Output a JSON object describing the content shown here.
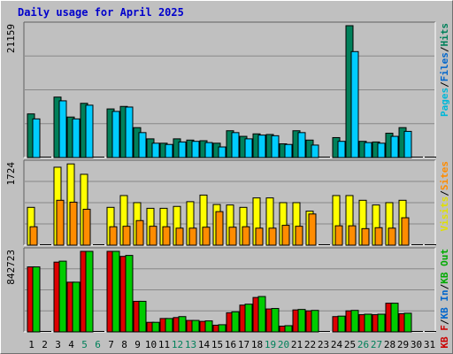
{
  "chart_data": {
    "type": "bar",
    "title": "Daily usage for April 2025",
    "title_color": "#0000cc",
    "x": [
      "1",
      "2",
      "3",
      "4",
      "5",
      "6",
      "7",
      "8",
      "9",
      "10",
      "11",
      "12",
      "13",
      "14",
      "15",
      "16",
      "17",
      "18",
      "19",
      "20",
      "21",
      "22",
      "23",
      "24",
      "25",
      "26",
      "27",
      "28",
      "29",
      "30",
      "31"
    ],
    "weekend_days": [
      "5",
      "6",
      "12",
      "13",
      "19",
      "20",
      "26",
      "27"
    ],
    "weekday_label_color": "#000000",
    "weekend_label_color": "#00805a",
    "panels": [
      {
        "id": "hits",
        "max_label": "21159",
        "ylim": [
          0,
          21159
        ],
        "legend": [
          {
            "text": "Pages",
            "color": "#00b8d8"
          },
          {
            "text": "/",
            "color": "#000000"
          },
          {
            "text": "Files",
            "color": "#0066cc"
          },
          {
            "text": "/",
            "color": "#000000"
          },
          {
            "text": "Hits",
            "color": "#00805a"
          }
        ],
        "series": [
          {
            "name": "Hits",
            "color": "#00805a",
            "values": [
              7000,
              0,
              9700,
              6500,
              8700,
              0,
              7800,
              8200,
              4800,
              3000,
              2300,
              3000,
              2800,
              2700,
              2300,
              4300,
              3400,
              3800,
              3700,
              2200,
              4300,
              2800,
              0,
              3200,
              21159,
              2600,
              2500,
              3900,
              4800,
              0,
              0
            ]
          },
          {
            "name": "Files",
            "color": "#0066cc",
            "values": [
              0,
              0,
              0,
              0,
              0,
              0,
              0,
              0,
              0,
              0,
              0,
              0,
              0,
              0,
              0,
              0,
              0,
              0,
              0,
              0,
              0,
              0,
              0,
              0,
              0,
              0,
              0,
              0,
              0,
              0,
              0
            ]
          },
          {
            "name": "Pages",
            "color": "#00ccff",
            "values": [
              6200,
              0,
              9100,
              6200,
              8400,
              0,
              7400,
              8100,
              4000,
              2300,
              2100,
              2500,
              2600,
              2400,
              1700,
              4000,
              3000,
              3600,
              3500,
              2100,
              4000,
              2000,
              0,
              2600,
              17000,
              2400,
              2300,
              3400,
              4200,
              0,
              0
            ]
          }
        ]
      },
      {
        "id": "visits",
        "max_label": "1724",
        "ylim": [
          0,
          1724
        ],
        "legend": [
          {
            "text": "Visits",
            "color": "#e0e000"
          },
          {
            "text": "/",
            "color": "#000000"
          },
          {
            "text": "Sites",
            "color": "#ff8c00"
          }
        ],
        "series": [
          {
            "name": "Visits",
            "color": "#ffff00",
            "values": [
              800,
              0,
              1650,
              1720,
              1500,
              0,
              800,
              1050,
              900,
              780,
              780,
              820,
              920,
              1060,
              860,
              850,
              800,
              1000,
              1000,
              900,
              900,
              720,
              0,
              1050,
              1050,
              950,
              850,
              900,
              950,
              0,
              0
            ]
          },
          {
            "name": "Sites",
            "color": "#ff8c00",
            "values": [
              390,
              0,
              950,
              910,
              760,
              0,
              390,
              400,
              520,
              400,
              390,
              360,
              360,
              380,
              710,
              380,
              390,
              360,
              360,
              420,
              400,
              660,
              0,
              410,
              410,
              350,
              370,
              360,
              580,
              0,
              0
            ]
          }
        ]
      },
      {
        "id": "kbytes",
        "max_label": "842723",
        "ylim": [
          0,
          842723
        ],
        "legend": [
          {
            "text": "KB F",
            "color": "#cc0000"
          },
          {
            "text": "/",
            "color": "#000000"
          },
          {
            "text": "KB In",
            "color": "#0066cc"
          },
          {
            "text": "/",
            "color": "#000000"
          },
          {
            "text": "KB Out",
            "color": "#00aa00"
          }
        ],
        "series": [
          {
            "name": "KB F",
            "color": "#dd0000",
            "values": [
              680000,
              0,
              730000,
              520000,
              842723,
              0,
              842723,
              790000,
              320000,
              100000,
              140000,
              150000,
              120000,
              110000,
              70000,
              200000,
              280000,
              360000,
              240000,
              60000,
              230000,
              220000,
              0,
              160000,
              220000,
              180000,
              180000,
              300000,
              190000,
              0,
              0
            ]
          },
          {
            "name": "KB In",
            "color": "#0066cc",
            "values": [
              0,
              0,
              0,
              0,
              0,
              0,
              0,
              0,
              0,
              0,
              0,
              0,
              0,
              0,
              0,
              0,
              0,
              0,
              0,
              0,
              0,
              0,
              0,
              0,
              0,
              0,
              0,
              0,
              0,
              0,
              0
            ]
          },
          {
            "name": "KB Out",
            "color": "#00cc00",
            "values": [
              680000,
              0,
              740000,
              520000,
              842723,
              0,
              842723,
              800000,
              320000,
              100000,
              140000,
              160000,
              120000,
              115000,
              75000,
              210000,
              290000,
              370000,
              245000,
              65000,
              235000,
              225000,
              0,
              165000,
              225000,
              185000,
              185000,
              300000,
              195000,
              0,
              0
            ]
          }
        ]
      }
    ]
  }
}
